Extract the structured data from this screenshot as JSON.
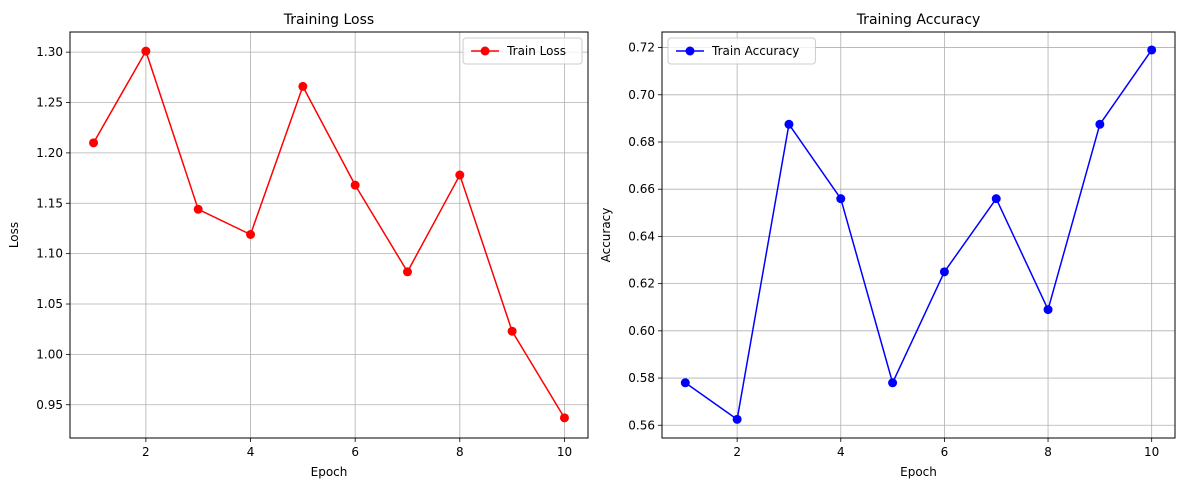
{
  "chart_data": [
    {
      "type": "line",
      "title": "Training Loss",
      "xlabel": "Epoch",
      "ylabel": "Loss",
      "grid": true,
      "legend": "top-right",
      "xlim": [
        0.55,
        10.45
      ],
      "ylim": [
        0.917,
        1.32
      ],
      "xticks": [
        2,
        4,
        6,
        8,
        10
      ],
      "yticks": [
        0.95,
        1.0,
        1.05,
        1.1,
        1.15,
        1.2,
        1.25,
        1.3
      ],
      "ytick_labels": [
        "0.95",
        "1.00",
        "1.05",
        "1.10",
        "1.15",
        "1.20",
        "1.25",
        "1.30"
      ],
      "x": [
        1,
        2,
        3,
        4,
        5,
        6,
        7,
        8,
        9,
        10
      ],
      "series": [
        {
          "name": "Train Loss",
          "color": "#ff0000",
          "marker": "circle",
          "values": [
            1.21,
            1.301,
            1.144,
            1.119,
            1.266,
            1.168,
            1.082,
            1.178,
            1.023,
            0.937
          ]
        }
      ]
    },
    {
      "type": "line",
      "title": "Training Accuracy",
      "xlabel": "Epoch",
      "ylabel": "Accuracy",
      "grid": true,
      "legend": "top-left",
      "xlim": [
        0.55,
        10.45
      ],
      "ylim": [
        0.5546,
        0.7266
      ],
      "xticks": [
        2,
        4,
        6,
        8,
        10
      ],
      "yticks": [
        0.56,
        0.58,
        0.6,
        0.62,
        0.64,
        0.66,
        0.68,
        0.7,
        0.72
      ],
      "ytick_labels": [
        "0.56",
        "0.58",
        "0.60",
        "0.62",
        "0.64",
        "0.66",
        "0.68",
        "0.70",
        "0.72"
      ],
      "x": [
        1,
        2,
        3,
        4,
        5,
        6,
        7,
        8,
        9,
        10
      ],
      "series": [
        {
          "name": "Train Accuracy",
          "color": "#0000ff",
          "marker": "circle",
          "values": [
            0.578,
            0.5625,
            0.6875,
            0.656,
            0.578,
            0.625,
            0.656,
            0.609,
            0.6875,
            0.719
          ]
        }
      ]
    }
  ]
}
